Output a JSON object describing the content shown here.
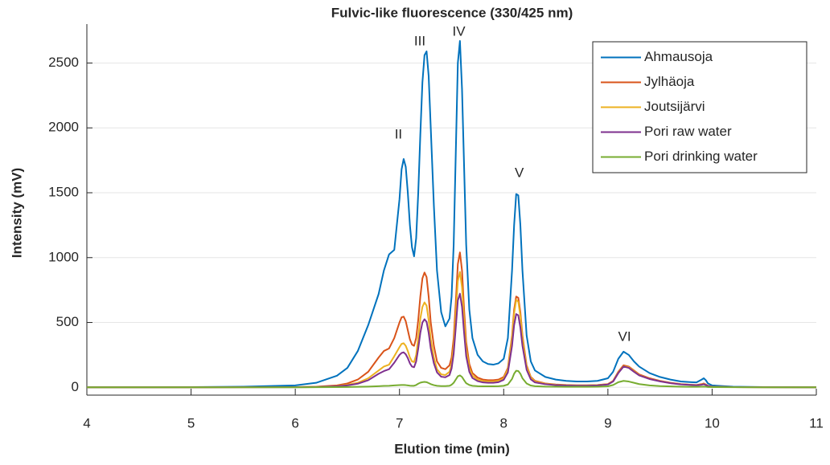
{
  "chart_data": {
    "type": "line",
    "title": "Fulvic-like fluorescence (330/425 nm)",
    "x_label": "Elution time (min)",
    "y_label": "Intensity (mV)",
    "xlim": [
      4,
      11
    ],
    "ylim": [
      -60,
      2800
    ],
    "xticks": [
      4,
      5,
      6,
      7,
      8,
      9,
      10,
      11
    ],
    "yticks": [
      0,
      500,
      1000,
      1500,
      2000,
      2500
    ],
    "grid": true,
    "legend": "northeast",
    "annotations": [
      {
        "text": "II",
        "x": 6.99,
        "y": 1946
      },
      {
        "text": "III",
        "x": 7.195,
        "y": 2664
      },
      {
        "text": "IV",
        "x": 7.57,
        "y": 2738
      },
      {
        "text": "V",
        "x": 8.15,
        "y": 1649
      },
      {
        "text": "VI",
        "x": 9.16,
        "y": 386
      }
    ],
    "x": [
      4,
      4.5,
      5,
      5.5,
      6,
      6.2,
      6.4,
      6.5,
      6.6,
      6.7,
      6.8,
      6.85,
      6.9,
      6.95,
      7.0,
      7.02,
      7.04,
      7.06,
      7.08,
      7.1,
      7.12,
      7.14,
      7.16,
      7.18,
      7.2,
      7.22,
      7.24,
      7.26,
      7.28,
      7.3,
      7.33,
      7.36,
      7.4,
      7.44,
      7.48,
      7.5,
      7.52,
      7.54,
      7.56,
      7.58,
      7.6,
      7.62,
      7.64,
      7.67,
      7.7,
      7.75,
      7.8,
      7.85,
      7.9,
      7.95,
      8.0,
      8.04,
      8.08,
      8.1,
      8.12,
      8.14,
      8.16,
      8.18,
      8.22,
      8.26,
      8.3,
      8.4,
      8.5,
      8.6,
      8.7,
      8.8,
      8.9,
      9.0,
      9.05,
      9.1,
      9.15,
      9.2,
      9.25,
      9.3,
      9.4,
      9.5,
      9.6,
      9.7,
      9.8,
      9.85,
      9.9,
      9.92,
      9.94,
      9.96,
      10.0,
      10.2,
      10.5,
      11
    ],
    "series": [
      {
        "name": "Ahmausoja",
        "color": "#0072BD",
        "values": [
          0,
          0,
          2,
          5,
          15,
          35,
          90,
          150,
          280,
          480,
          720,
          900,
          1025,
          1060,
          1450,
          1680,
          1760,
          1700,
          1500,
          1250,
          1080,
          1010,
          1150,
          1500,
          1950,
          2350,
          2560,
          2590,
          2400,
          2000,
          1400,
          900,
          580,
          470,
          530,
          700,
          1100,
          1800,
          2500,
          2670,
          2300,
          1700,
          1100,
          600,
          380,
          250,
          200,
          180,
          175,
          185,
          220,
          380,
          900,
          1250,
          1490,
          1480,
          1250,
          900,
          400,
          200,
          130,
          80,
          60,
          50,
          45,
          45,
          50,
          70,
          120,
          220,
          275,
          250,
          200,
          160,
          110,
          80,
          60,
          45,
          40,
          38,
          60,
          70,
          55,
          30,
          15,
          5,
          2,
          0
        ]
      },
      {
        "name": "Jylhäoja",
        "color": "#D95319",
        "values": [
          0,
          0,
          0,
          1,
          2,
          5,
          15,
          30,
          60,
          120,
          230,
          280,
          300,
          380,
          500,
          540,
          545,
          510,
          440,
          370,
          330,
          320,
          380,
          520,
          700,
          840,
          885,
          850,
          700,
          500,
          320,
          200,
          150,
          140,
          170,
          230,
          380,
          650,
          950,
          1040,
          900,
          600,
          350,
          180,
          110,
          75,
          60,
          55,
          55,
          60,
          80,
          150,
          400,
          600,
          700,
          690,
          580,
          400,
          170,
          80,
          50,
          30,
          22,
          18,
          16,
          16,
          18,
          25,
          50,
          120,
          170,
          160,
          130,
          100,
          70,
          50,
          35,
          25,
          20,
          18,
          25,
          30,
          22,
          12,
          5,
          2,
          1,
          0
        ]
      },
      {
        "name": "Joutsijärvi",
        "color": "#EDB120",
        "values": [
          0,
          0,
          0,
          1,
          2,
          4,
          10,
          20,
          35,
          70,
          130,
          160,
          175,
          240,
          310,
          335,
          340,
          320,
          280,
          230,
          200,
          195,
          250,
          380,
          530,
          620,
          655,
          630,
          520,
          370,
          230,
          140,
          100,
          95,
          120,
          180,
          320,
          560,
          820,
          890,
          770,
          520,
          300,
          150,
          90,
          60,
          48,
          45,
          45,
          50,
          70,
          140,
          380,
          570,
          675,
          660,
          550,
          380,
          160,
          75,
          45,
          28,
          20,
          16,
          15,
          15,
          17,
          24,
          48,
          115,
          162,
          155,
          125,
          95,
          65,
          48,
          33,
          24,
          19,
          17,
          22,
          26,
          20,
          11,
          5,
          2,
          1,
          0
        ]
      },
      {
        "name": "Pori raw water",
        "color": "#7E2F8E",
        "values": [
          0,
          0,
          0,
          1,
          1,
          3,
          8,
          15,
          28,
          55,
          105,
          125,
          140,
          190,
          250,
          265,
          270,
          255,
          225,
          185,
          160,
          155,
          200,
          300,
          420,
          500,
          525,
          505,
          420,
          300,
          185,
          115,
          82,
          78,
          95,
          145,
          260,
          460,
          670,
          722,
          620,
          420,
          240,
          120,
          72,
          48,
          38,
          35,
          35,
          40,
          58,
          115,
          320,
          480,
          565,
          555,
          460,
          320,
          135,
          62,
          38,
          24,
          17,
          14,
          13,
          13,
          15,
          22,
          45,
          110,
          160,
          150,
          120,
          92,
          64,
          46,
          32,
          23,
          18,
          16,
          20,
          24,
          18,
          10,
          4,
          2,
          1,
          0
        ]
      },
      {
        "name": "Pori drinking water",
        "color": "#77AC30",
        "values": [
          0,
          0,
          0,
          0,
          0,
          1,
          2,
          3,
          4,
          6,
          9,
          11,
          12,
          15,
          17,
          18,
          18,
          17,
          15,
          13,
          12,
          12,
          18,
          28,
          36,
          40,
          42,
          40,
          33,
          25,
          17,
          12,
          10,
          10,
          12,
          20,
          35,
          60,
          85,
          92,
          80,
          55,
          32,
          18,
          12,
          9,
          8,
          8,
          8,
          9,
          12,
          22,
          65,
          105,
          128,
          126,
          105,
          70,
          30,
          14,
          9,
          6,
          5,
          4,
          4,
          4,
          5,
          8,
          18,
          40,
          50,
          45,
          35,
          25,
          15,
          10,
          7,
          5,
          4,
          4,
          5,
          6,
          5,
          3,
          2,
          1,
          0,
          0
        ]
      }
    ]
  }
}
